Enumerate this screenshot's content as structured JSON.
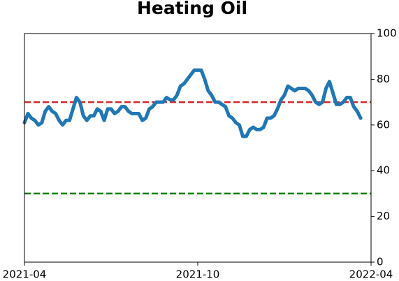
{
  "chart_data": {
    "type": "line",
    "title": "Heating Oil",
    "xlim": [
      "2021-04",
      "2022-04"
    ],
    "xticks": [
      "2021-04",
      "2021-10",
      "2022-04"
    ],
    "ylim": [
      0,
      100
    ],
    "yticks": [
      0,
      20,
      40,
      60,
      80,
      100
    ],
    "y_axis_side": "right",
    "series": [
      {
        "color": "#1f77b4",
        "values": [
          61,
          65,
          63,
          62,
          60,
          61,
          66,
          68,
          66,
          65,
          62,
          60,
          62,
          62,
          67,
          72,
          70,
          64,
          62,
          64,
          64,
          67,
          66,
          62,
          67,
          67,
          65,
          66,
          68,
          68,
          66,
          65,
          65,
          65,
          62,
          63,
          67,
          68,
          70,
          70,
          70,
          72,
          71,
          71,
          73,
          77,
          78,
          80,
          82,
          84,
          84,
          84,
          80,
          75,
          73,
          70,
          70,
          69,
          68,
          64,
          63,
          61,
          60,
          55,
          55,
          58,
          59,
          58,
          58,
          59,
          63,
          63,
          64,
          67,
          71,
          73,
          77,
          76,
          75,
          76,
          76,
          76,
          75,
          73,
          70,
          69,
          70,
          76,
          79,
          74,
          69,
          69,
          70,
          72,
          72,
          68,
          66,
          63,
          null,
          null,
          null
        ]
      }
    ],
    "reference_lines": [
      {
        "value": 70,
        "color": "#d62728"
      },
      {
        "value": 30,
        "color": "#008000"
      }
    ]
  }
}
